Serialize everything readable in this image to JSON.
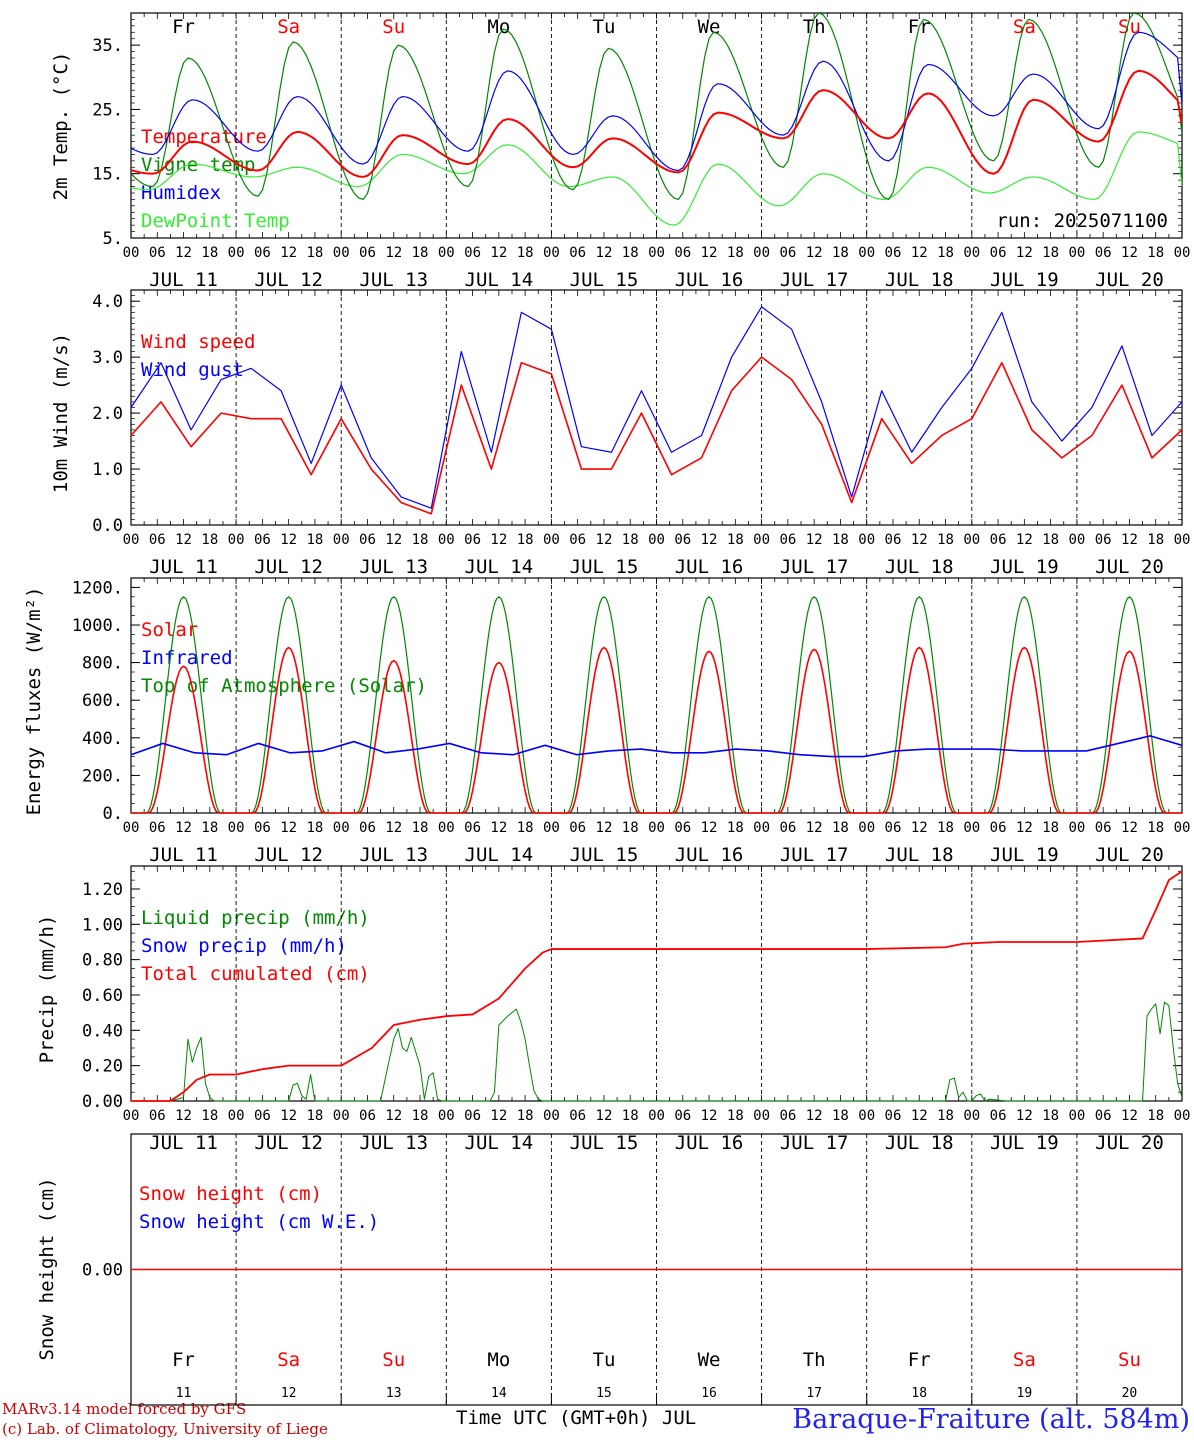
{
  "run_label": "run: 2025071100",
  "day_names": [
    "Fr",
    "Sa",
    "Su",
    "Mo",
    "Tu",
    "We",
    "Th",
    "Fr",
    "Sa",
    "Su"
  ],
  "day_numbers": [
    "11",
    "12",
    "13",
    "14",
    "15",
    "16",
    "17",
    "18",
    "19",
    "20"
  ],
  "date_labels": [
    "JUL 11",
    "JUL 12",
    "JUL 13",
    "JUL 14",
    "JUL 15",
    "JUL 16",
    "JUL 17",
    "JUL 18",
    "JUL 19",
    "JUL 20"
  ],
  "hour_ticks": [
    "00",
    "06",
    "12",
    "18"
  ],
  "colors": {
    "red": "#ff0000",
    "green": "#008800",
    "blue": "#0000ff",
    "lightgreen": "#33ee33",
    "darkred": "#cc0000",
    "title_blue": "#2222ee",
    "black": "#000000"
  },
  "footer": {
    "model": "MARv3.14 model forced by GFS",
    "lab": "(c) Lab. of Climatology, University of Liege",
    "time_axis": "Time UTC (GMT+0h) JUL",
    "station": "Baraque-Fraiture (alt. 584m)"
  },
  "chart_data": [
    {
      "type": "line",
      "ylabel": "2m Temp. (°C)",
      "ylim": [
        5,
        40
      ],
      "yticks": [
        5,
        15,
        25,
        35
      ],
      "ytick_labels": [
        "5.",
        "15.",
        "25.",
        "35."
      ],
      "legend": [
        "Temperature",
        "Vigne temp",
        "Humidex",
        "DewPoint Temp"
      ],
      "series": [
        {
          "name": "Temperature",
          "color": "red",
          "min_hour": 5,
          "max_hour": 14,
          "min": [
            15.0,
            15.5,
            14.5,
            16.5,
            16.0,
            15.2,
            20.5,
            20.5,
            15.0,
            20.0
          ],
          "max": [
            20.0,
            21.5,
            21.0,
            23.5,
            20.5,
            24.5,
            28.0,
            27.5,
            26.5,
            31.0
          ],
          "end": 24.0
        },
        {
          "name": "Vigne temp",
          "color": "green",
          "min_hour": 5,
          "max_hour": 13,
          "min": [
            13.0,
            11.5,
            11.0,
            13.0,
            12.5,
            11.0,
            16.0,
            11.0,
            17.0,
            16.0
          ],
          "max": [
            33.0,
            35.5,
            35.0,
            37.5,
            34.5,
            37.0,
            40.0,
            39.0,
            39.0,
            40.0
          ],
          "end": 21.0
        },
        {
          "name": "Humidex",
          "color": "blue",
          "min_hour": 5,
          "max_hour": 14,
          "min": [
            18.0,
            18.5,
            16.5,
            18.5,
            18.0,
            15.5,
            21.0,
            17.0,
            24.0,
            22.0
          ],
          "max": [
            26.5,
            27.0,
            27.0,
            31.0,
            24.0,
            29.0,
            32.5,
            32.0,
            30.5,
            37.0
          ],
          "end": 31.0
        },
        {
          "name": "DewPoint Temp",
          "color": "lightgreen",
          "min_hour": 4,
          "max_hour": 14,
          "min": [
            12.5,
            14.5,
            13.0,
            15.0,
            13.0,
            7.0,
            10.0,
            11.0,
            12.0,
            11.0
          ],
          "max": [
            16.5,
            16.0,
            18.0,
            19.5,
            14.5,
            16.5,
            15.0,
            16.0,
            14.5,
            21.5
          ],
          "end": 19.0
        }
      ]
    },
    {
      "type": "line",
      "ylabel": "10m Wind (m/s)",
      "ylim": [
        0,
        4
      ],
      "yticks": [
        0,
        1,
        2,
        3,
        4
      ],
      "ytick_labels": [
        "0.0",
        "1.0",
        "2.0",
        "3.0",
        "4.0"
      ],
      "legend": [
        "Wind speed",
        "Wind gust"
      ],
      "series": [
        {
          "name": "Wind speed",
          "color": "red",
          "values": [
            1.6,
            2.2,
            1.4,
            2.0,
            1.9,
            1.9,
            0.9,
            1.9,
            1.0,
            0.4,
            0.2,
            2.5,
            1.0,
            2.9,
            2.7,
            1.0,
            1.0,
            2.0,
            0.9,
            1.2,
            2.4,
            3.0,
            2.6,
            1.8,
            0.4,
            1.9,
            1.1,
            1.6,
            1.9,
            2.9,
            1.7,
            1.2,
            1.6,
            2.5,
            1.2,
            1.7
          ]
        },
        {
          "name": "Wind gust",
          "color": "blue",
          "values": [
            2.1,
            2.9,
            1.7,
            2.6,
            2.8,
            2.4,
            1.1,
            2.5,
            1.2,
            0.5,
            0.3,
            3.1,
            1.3,
            3.8,
            3.5,
            1.4,
            1.3,
            2.4,
            1.3,
            1.6,
            3.0,
            3.9,
            3.5,
            2.2,
            0.5,
            2.4,
            1.3,
            2.1,
            2.8,
            3.8,
            2.2,
            1.5,
            2.1,
            3.2,
            1.6,
            2.2
          ]
        }
      ]
    },
    {
      "type": "line",
      "ylabel": "Energy fluxes (W/m²)",
      "ylim": [
        0,
        1200
      ],
      "yticks": [
        0,
        200,
        400,
        600,
        800,
        1000,
        1200
      ],
      "ytick_labels": [
        "0.",
        "200.",
        "400.",
        "600.",
        "800.",
        "1000.",
        "1200."
      ],
      "legend": [
        "Solar",
        "Infrared",
        "Top of Atmosphere (Solar)"
      ],
      "series": [
        {
          "name": "Solar",
          "color": "red",
          "sunrise_hour": 4,
          "sunset_hour": 20,
          "daily_peak": [
            780,
            880,
            810,
            800,
            880,
            860,
            870,
            880,
            880,
            860
          ]
        },
        {
          "name": "Infrared",
          "color": "blue",
          "values": [
            310,
            370,
            320,
            310,
            370,
            320,
            330,
            380,
            320,
            340,
            370,
            320,
            310,
            360,
            310,
            330,
            340,
            320,
            320,
            340,
            330,
            310,
            300,
            300,
            330,
            340,
            340,
            340,
            330,
            330,
            330,
            370,
            410,
            360
          ]
        },
        {
          "name": "Top of Atmosphere (Solar)",
          "color": "green",
          "sunrise_hour": 3.5,
          "sunset_hour": 20.5,
          "daily_peak": [
            1150,
            1150,
            1150,
            1150,
            1150,
            1150,
            1150,
            1150,
            1150,
            1150
          ]
        }
      ]
    },
    {
      "type": "line",
      "ylabel": "Precip (mm/h)",
      "ylim": [
        0,
        1.3
      ],
      "yticks": [
        0,
        0.2,
        0.4,
        0.6,
        0.8,
        1.0,
        1.2
      ],
      "ytick_labels": [
        "0.00",
        "0.20",
        "0.40",
        "0.60",
        "0.80",
        "1.00",
        "1.20"
      ],
      "legend": [
        "Liquid precip (mm/h)",
        "Snow precip (mm/h)",
        "Total cumulated (cm)"
      ],
      "series": [
        {
          "name": "Total cumulated (cm)",
          "color": "red",
          "x": [
            0,
            9,
            12,
            15,
            18,
            24,
            30,
            36,
            48,
            55,
            60,
            66,
            72,
            78,
            84,
            90,
            94,
            96,
            120,
            144,
            168,
            186,
            190,
            198,
            216,
            231,
            234,
            237,
            240
          ],
          "y": [
            0,
            0,
            0.05,
            0.12,
            0.15,
            0.15,
            0.18,
            0.2,
            0.2,
            0.3,
            0.43,
            0.46,
            0.48,
            0.49,
            0.58,
            0.75,
            0.84,
            0.86,
            0.86,
            0.86,
            0.86,
            0.87,
            0.89,
            0.9,
            0.9,
            0.92,
            1.08,
            1.25,
            1.3
          ]
        },
        {
          "name": "Liquid precip (mm/h)",
          "color": "green",
          "x": [
            0,
            9,
            12,
            13,
            14,
            15,
            16,
            17,
            18,
            19,
            36,
            37,
            38,
            39,
            40,
            41,
            42,
            57,
            58,
            60,
            61,
            62,
            63,
            64,
            66,
            67,
            68,
            69,
            70,
            71,
            72,
            82,
            83,
            84,
            86,
            87,
            88,
            89,
            90,
            91,
            92,
            93,
            94,
            186,
            187,
            188,
            189,
            190,
            191,
            192,
            193,
            194,
            195,
            196,
            200,
            231,
            232,
            233,
            234,
            235,
            236,
            237,
            238,
            239,
            240
          ],
          "y": [
            0,
            0,
            0.02,
            0.35,
            0.22,
            0.3,
            0.36,
            0.1,
            0.02,
            0,
            0,
            0.09,
            0.1,
            0.03,
            0.01,
            0.15,
            0,
            0,
            0.12,
            0.35,
            0.41,
            0.3,
            0.28,
            0.36,
            0.2,
            0.01,
            0.14,
            0.16,
            0.01,
            0,
            0,
            0,
            0.05,
            0.43,
            0.48,
            0.5,
            0.52,
            0.45,
            0.35,
            0.2,
            0.06,
            0.01,
            0,
            0,
            0.12,
            0.13,
            0.02,
            0.05,
            0,
            0,
            0.03,
            0.04,
            0,
            0.01,
            0,
            0,
            0.48,
            0.52,
            0.55,
            0.38,
            0.56,
            0.54,
            0.3,
            0.1,
            0.02
          ]
        }
      ]
    },
    {
      "type": "line",
      "ylabel": "Snow height (cm)",
      "ylim": [
        -1,
        1
      ],
      "yticks": [
        0
      ],
      "ytick_labels": [
        "0.00"
      ],
      "legend": [
        "Snow height (cm)",
        "Snow height (cm W.E.)"
      ],
      "series": [
        {
          "name": "Snow height (cm)",
          "color": "red",
          "x": [
            0,
            240
          ],
          "y": [
            0,
            0
          ]
        }
      ]
    }
  ]
}
